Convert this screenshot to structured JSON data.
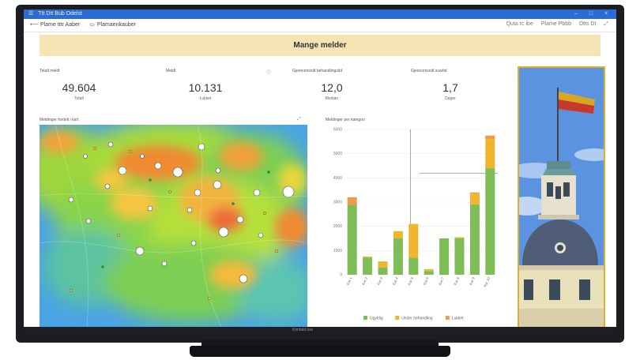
{
  "window": {
    "title": "Ttt  Dtt  Bub Odelst"
  },
  "toolbar": {
    "items": [
      "Plame tttr Aaber",
      "Plamaenkauber"
    ],
    "right_items": [
      "Quta rc ibe",
      "Plame Pbbb",
      "Dtts Dt"
    ]
  },
  "banner": {
    "text": "Mange melder"
  },
  "kpis": [
    {
      "label": "Totalt meldt",
      "value": "49.604",
      "sub": "Totalt"
    },
    {
      "label": "Meldt",
      "value": "10.131",
      "sub": "Lukket"
    },
    {
      "label": "Gjennomsnitt behandlingstid",
      "value": "12,0",
      "sub": "Median"
    },
    {
      "label": "Gjennomsnitt svartid",
      "value": "1,7",
      "sub": "Dager"
    }
  ],
  "map": {
    "title": "Meldinger fordelt i kart"
  },
  "chart_data": {
    "type": "bar",
    "title": "Meldinger per kategori",
    "categories": [
      "Kat 1",
      "Kat 2",
      "Kat 3",
      "Kat 4",
      "Kat 5",
      "Kat 6",
      "Kat 7",
      "Kat 8",
      "Kat 9",
      "Kat 10"
    ],
    "series": [
      {
        "name": "Ugyldig",
        "color": "#7fbd57",
        "values": [
          2900,
          700,
          300,
          1500,
          700,
          150,
          1500,
          1500,
          2900,
          4400
        ]
      },
      {
        "name": "Under behandling",
        "color": "#f0b52e",
        "values": [
          0,
          50,
          250,
          300,
          1400,
          80,
          0,
          50,
          450,
          1200
        ]
      },
      {
        "name": "Lukket",
        "color": "#ee9b4b",
        "values": [
          300,
          0,
          0,
          0,
          0,
          0,
          0,
          0,
          50,
          150
        ]
      }
    ],
    "ylim": [
      0,
      6000
    ],
    "yticks": [
      "0",
      "1000",
      "2000",
      "3000",
      "4000",
      "5000",
      "6000"
    ],
    "legend": "bottom"
  },
  "taskbar": {
    "text": "Kontakt oss"
  }
}
